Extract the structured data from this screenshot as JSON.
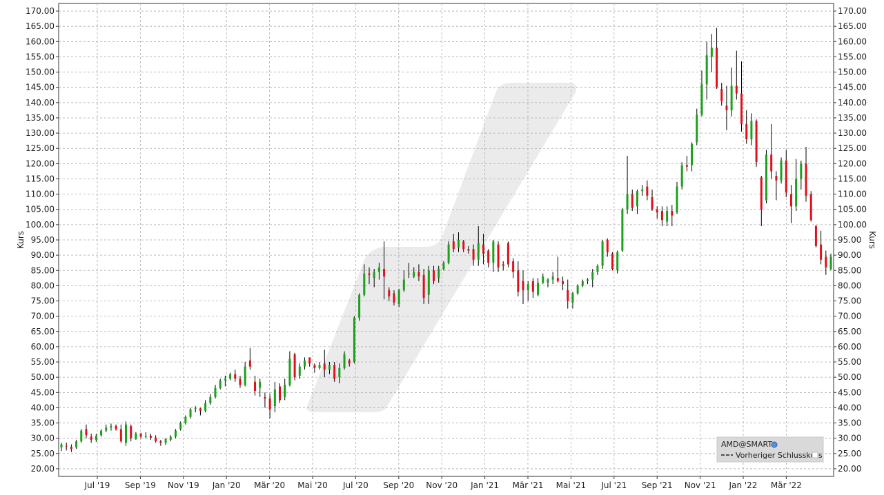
{
  "chart_data": {
    "type": "candlestick",
    "ylabel_left": "Kurs",
    "ylabel_right": "Kurs",
    "ylim": [
      17.5,
      172.5
    ],
    "grid": true,
    "y_ticks": [
      "20.00",
      "25.00",
      "30.00",
      "35.00",
      "40.00",
      "45.00",
      "50.00",
      "55.00",
      "60.00",
      "65.00",
      "70.00",
      "75.00",
      "80.00",
      "85.00",
      "90.00",
      "95.00",
      "100.00",
      "105.00",
      "110.00",
      "115.00",
      "120.00",
      "125.00",
      "130.00",
      "135.00",
      "140.00",
      "145.00",
      "150.00",
      "155.00",
      "160.00",
      "165.00",
      "170.00"
    ],
    "x_ticks": [
      "Jul '19",
      "Sep '19",
      "Nov '19",
      "Jan '20",
      "Mär '20",
      "Mai '20",
      "Jul '20",
      "Sep '20",
      "Nov '20",
      "Jan '21",
      "Mär '21",
      "Mai '21",
      "Jul '21",
      "Sep '21",
      "Nov '21",
      "Jan '22",
      "Mär '22"
    ],
    "colors": {
      "up": "#1aa01a",
      "down": "#e0101a",
      "wick": "#000000",
      "grid": "#aaaaaa"
    },
    "legend": {
      "placement": "bottom-right",
      "symbol": "AMD@SMART",
      "entry": "Vorheriger Schlusskurs"
    },
    "series": [
      {
        "o": 27.0,
        "h": 28.5,
        "l": 25.8,
        "c": 28.0
      },
      {
        "o": 27.5,
        "h": 28.6,
        "l": 26.0,
        "c": 27.3
      },
      {
        "o": 27.2,
        "h": 28.0,
        "l": 25.5,
        "c": 26.5
      },
      {
        "o": 27.0,
        "h": 29.5,
        "l": 26.5,
        "c": 29.0
      },
      {
        "o": 29.0,
        "h": 33.0,
        "l": 28.5,
        "c": 32.5
      },
      {
        "o": 33.0,
        "h": 34.5,
        "l": 30.0,
        "c": 31.0
      },
      {
        "o": 30.5,
        "h": 31.5,
        "l": 28.5,
        "c": 29.5
      },
      {
        "o": 29.5,
        "h": 31.5,
        "l": 28.8,
        "c": 30.8
      },
      {
        "o": 31.0,
        "h": 33.0,
        "l": 30.5,
        "c": 32.5
      },
      {
        "o": 32.5,
        "h": 34.5,
        "l": 32.0,
        "c": 33.5
      },
      {
        "o": 33.5,
        "h": 34.8,
        "l": 32.5,
        "c": 34.0
      },
      {
        "o": 34.0,
        "h": 34.5,
        "l": 32.5,
        "c": 33.0
      },
      {
        "o": 33.0,
        "h": 34.5,
        "l": 28.5,
        "c": 29.0
      },
      {
        "o": 28.5,
        "h": 35.5,
        "l": 27.5,
        "c": 34.5
      },
      {
        "o": 34.0,
        "h": 34.5,
        "l": 29.0,
        "c": 30.0
      },
      {
        "o": 29.8,
        "h": 32.0,
        "l": 29.5,
        "c": 31.5
      },
      {
        "o": 31.5,
        "h": 31.8,
        "l": 30.0,
        "c": 30.5
      },
      {
        "o": 30.5,
        "h": 32.0,
        "l": 30.0,
        "c": 30.8
      },
      {
        "o": 30.8,
        "h": 31.5,
        "l": 29.5,
        "c": 30.2
      },
      {
        "o": 30.2,
        "h": 31.0,
        "l": 28.5,
        "c": 29.0
      },
      {
        "o": 29.0,
        "h": 29.5,
        "l": 27.5,
        "c": 28.5
      },
      {
        "o": 28.5,
        "h": 30.0,
        "l": 27.8,
        "c": 29.8
      },
      {
        "o": 29.5,
        "h": 31.0,
        "l": 29.0,
        "c": 30.5
      },
      {
        "o": 30.5,
        "h": 33.0,
        "l": 30.0,
        "c": 32.5
      },
      {
        "o": 33.0,
        "h": 35.5,
        "l": 32.5,
        "c": 35.0
      },
      {
        "o": 35.0,
        "h": 37.5,
        "l": 34.5,
        "c": 37.0
      },
      {
        "o": 37.0,
        "h": 40.0,
        "l": 36.5,
        "c": 39.5
      },
      {
        "o": 39.5,
        "h": 40.5,
        "l": 38.5,
        "c": 39.8
      },
      {
        "o": 39.8,
        "h": 40.0,
        "l": 37.5,
        "c": 39.0
      },
      {
        "o": 39.0,
        "h": 42.5,
        "l": 38.5,
        "c": 41.5
      },
      {
        "o": 41.5,
        "h": 44.5,
        "l": 41.0,
        "c": 43.5
      },
      {
        "o": 43.5,
        "h": 47.5,
        "l": 43.0,
        "c": 46.5
      },
      {
        "o": 46.5,
        "h": 49.5,
        "l": 46.0,
        "c": 49.0
      },
      {
        "o": 49.0,
        "h": 50.5,
        "l": 47.0,
        "c": 49.5
      },
      {
        "o": 49.5,
        "h": 51.5,
        "l": 49.0,
        "c": 51.0
      },
      {
        "o": 51.0,
        "h": 52.5,
        "l": 48.5,
        "c": 49.5
      },
      {
        "o": 49.5,
        "h": 50.5,
        "l": 46.5,
        "c": 47.5
      },
      {
        "o": 47.5,
        "h": 55.0,
        "l": 47.0,
        "c": 53.5
      },
      {
        "o": 55.5,
        "h": 59.5,
        "l": 52.5,
        "c": 53.5
      },
      {
        "o": 48.5,
        "h": 50.5,
        "l": 44.0,
        "c": 45.5
      },
      {
        "o": 46.5,
        "h": 49.5,
        "l": 43.5,
        "c": 48.5
      },
      {
        "o": 43.5,
        "h": 45.0,
        "l": 40.0,
        "c": 43.0
      },
      {
        "o": 43.0,
        "h": 44.5,
        "l": 36.5,
        "c": 39.5
      },
      {
        "o": 40.5,
        "h": 48.5,
        "l": 38.5,
        "c": 46.0
      },
      {
        "o": 47.0,
        "h": 48.0,
        "l": 41.5,
        "c": 42.5
      },
      {
        "o": 43.5,
        "h": 49.5,
        "l": 42.5,
        "c": 47.5
      },
      {
        "o": 47.5,
        "h": 58.5,
        "l": 47.0,
        "c": 56.0
      },
      {
        "o": 57.5,
        "h": 58.0,
        "l": 49.0,
        "c": 50.0
      },
      {
        "o": 50.5,
        "h": 54.5,
        "l": 49.5,
        "c": 53.5
      },
      {
        "o": 53.5,
        "h": 56.5,
        "l": 52.5,
        "c": 55.5
      },
      {
        "o": 56.5,
        "h": 56.5,
        "l": 53.5,
        "c": 54.5
      },
      {
        "o": 54.0,
        "h": 54.5,
        "l": 51.5,
        "c": 53.0
      },
      {
        "o": 53.0,
        "h": 55.0,
        "l": 52.5,
        "c": 54.0
      },
      {
        "o": 54.5,
        "h": 59.0,
        "l": 50.0,
        "c": 52.5
      },
      {
        "o": 52.5,
        "h": 55.0,
        "l": 51.0,
        "c": 54.0
      },
      {
        "o": 54.0,
        "h": 55.0,
        "l": 48.5,
        "c": 49.5
      },
      {
        "o": 50.0,
        "h": 54.5,
        "l": 48.0,
        "c": 53.0
      },
      {
        "o": 53.0,
        "h": 58.5,
        "l": 52.5,
        "c": 57.5
      },
      {
        "o": 55.5,
        "h": 56.0,
        "l": 53.5,
        "c": 54.5
      },
      {
        "o": 55.0,
        "h": 70.0,
        "l": 54.5,
        "c": 69.5
      },
      {
        "o": 69.5,
        "h": 77.5,
        "l": 68.5,
        "c": 77.0
      },
      {
        "o": 77.0,
        "h": 87.0,
        "l": 76.5,
        "c": 84.0
      },
      {
        "o": 84.0,
        "h": 86.0,
        "l": 80.5,
        "c": 83.5
      },
      {
        "o": 82.5,
        "h": 85.5,
        "l": 79.5,
        "c": 84.5
      },
      {
        "o": 84.5,
        "h": 87.5,
        "l": 82.0,
        "c": 86.0
      },
      {
        "o": 85.5,
        "h": 94.5,
        "l": 75.5,
        "c": 83.0
      },
      {
        "o": 78.5,
        "h": 79.5,
        "l": 75.0,
        "c": 76.5
      },
      {
        "o": 77.5,
        "h": 78.5,
        "l": 73.5,
        "c": 74.5
      },
      {
        "o": 74.0,
        "h": 79.0,
        "l": 73.0,
        "c": 78.5
      },
      {
        "o": 78.5,
        "h": 85.0,
        "l": 78.0,
        "c": 82.0
      },
      {
        "o": 84.0,
        "h": 87.5,
        "l": 82.5,
        "c": 84.0
      },
      {
        "o": 83.0,
        "h": 86.0,
        "l": 82.5,
        "c": 84.5
      },
      {
        "o": 84.5,
        "h": 87.0,
        "l": 81.5,
        "c": 83.0
      },
      {
        "o": 83.5,
        "h": 85.5,
        "l": 74.0,
        "c": 76.0
      },
      {
        "o": 77.0,
        "h": 86.5,
        "l": 74.0,
        "c": 85.0
      },
      {
        "o": 85.0,
        "h": 86.5,
        "l": 80.5,
        "c": 81.5
      },
      {
        "o": 82.5,
        "h": 86.5,
        "l": 81.0,
        "c": 85.5
      },
      {
        "o": 85.5,
        "h": 88.0,
        "l": 85.0,
        "c": 87.5
      },
      {
        "o": 87.5,
        "h": 94.5,
        "l": 87.0,
        "c": 93.5
      },
      {
        "o": 94.5,
        "h": 97.0,
        "l": 91.0,
        "c": 92.0
      },
      {
        "o": 92.5,
        "h": 97.5,
        "l": 91.0,
        "c": 95.0
      },
      {
        "o": 94.5,
        "h": 95.0,
        "l": 91.0,
        "c": 92.0
      },
      {
        "o": 92.0,
        "h": 93.0,
        "l": 90.5,
        "c": 91.5
      },
      {
        "o": 92.0,
        "h": 93.5,
        "l": 86.5,
        "c": 88.5
      },
      {
        "o": 88.5,
        "h": 99.5,
        "l": 86.5,
        "c": 94.0
      },
      {
        "o": 93.5,
        "h": 97.0,
        "l": 87.0,
        "c": 90.5
      },
      {
        "o": 91.5,
        "h": 92.0,
        "l": 86.0,
        "c": 87.5
      },
      {
        "o": 87.5,
        "h": 95.0,
        "l": 84.5,
        "c": 94.5
      },
      {
        "o": 93.5,
        "h": 94.5,
        "l": 84.5,
        "c": 86.0
      },
      {
        "o": 87.0,
        "h": 88.0,
        "l": 85.0,
        "c": 86.5
      },
      {
        "o": 94.0,
        "h": 94.5,
        "l": 86.0,
        "c": 87.0
      },
      {
        "o": 88.0,
        "h": 89.0,
        "l": 82.5,
        "c": 84.5
      },
      {
        "o": 85.0,
        "h": 88.0,
        "l": 76.5,
        "c": 78.0
      },
      {
        "o": 81.5,
        "h": 85.0,
        "l": 74.0,
        "c": 78.5
      },
      {
        "o": 78.5,
        "h": 81.5,
        "l": 75.0,
        "c": 80.5
      },
      {
        "o": 81.5,
        "h": 82.5,
        "l": 76.0,
        "c": 78.0
      },
      {
        "o": 77.0,
        "h": 82.5,
        "l": 76.5,
        "c": 81.0
      },
      {
        "o": 81.0,
        "h": 84.0,
        "l": 80.5,
        "c": 83.0
      },
      {
        "o": 81.0,
        "h": 82.5,
        "l": 79.5,
        "c": 82.0
      },
      {
        "o": 82.0,
        "h": 84.5,
        "l": 80.5,
        "c": 83.0
      },
      {
        "o": 82.5,
        "h": 89.5,
        "l": 81.0,
        "c": 81.5
      },
      {
        "o": 81.5,
        "h": 83.0,
        "l": 78.5,
        "c": 80.5
      },
      {
        "o": 78.5,
        "h": 82.0,
        "l": 72.5,
        "c": 75.0
      },
      {
        "o": 74.5,
        "h": 78.0,
        "l": 72.5,
        "c": 77.5
      },
      {
        "o": 77.5,
        "h": 80.5,
        "l": 77.0,
        "c": 80.0
      },
      {
        "o": 80.0,
        "h": 82.0,
        "l": 79.5,
        "c": 81.5
      },
      {
        "o": 81.5,
        "h": 82.5,
        "l": 80.5,
        "c": 82.0
      },
      {
        "o": 82.0,
        "h": 85.5,
        "l": 79.5,
        "c": 84.5
      },
      {
        "o": 84.5,
        "h": 87.0,
        "l": 83.5,
        "c": 86.5
      },
      {
        "o": 86.5,
        "h": 95.0,
        "l": 85.5,
        "c": 94.5
      },
      {
        "o": 95.0,
        "h": 95.5,
        "l": 89.5,
        "c": 91.0
      },
      {
        "o": 90.5,
        "h": 91.0,
        "l": 85.0,
        "c": 85.5
      },
      {
        "o": 85.0,
        "h": 91.5,
        "l": 84.0,
        "c": 91.0
      },
      {
        "o": 91.5,
        "h": 105.5,
        "l": 91.0,
        "c": 105.0
      },
      {
        "o": 105.0,
        "h": 122.5,
        "l": 103.5,
        "c": 110.0
      },
      {
        "o": 110.0,
        "h": 111.5,
        "l": 104.5,
        "c": 105.5
      },
      {
        "o": 106.0,
        "h": 111.5,
        "l": 103.5,
        "c": 111.0
      },
      {
        "o": 111.0,
        "h": 113.0,
        "l": 109.5,
        "c": 111.5
      },
      {
        "o": 112.5,
        "h": 114.5,
        "l": 108.0,
        "c": 109.5
      },
      {
        "o": 109.0,
        "h": 111.5,
        "l": 104.5,
        "c": 105.0
      },
      {
        "o": 105.0,
        "h": 106.0,
        "l": 102.0,
        "c": 104.0
      },
      {
        "o": 104.5,
        "h": 106.0,
        "l": 99.5,
        "c": 101.5
      },
      {
        "o": 101.0,
        "h": 106.0,
        "l": 99.5,
        "c": 104.5
      },
      {
        "o": 104.5,
        "h": 106.5,
        "l": 99.5,
        "c": 103.0
      },
      {
        "o": 104.0,
        "h": 114.0,
        "l": 103.5,
        "c": 112.5
      },
      {
        "o": 112.5,
        "h": 120.5,
        "l": 111.5,
        "c": 119.5
      },
      {
        "o": 119.5,
        "h": 122.5,
        "l": 117.5,
        "c": 119.0
      },
      {
        "o": 119.5,
        "h": 127.0,
        "l": 117.5,
        "c": 126.5
      },
      {
        "o": 127.0,
        "h": 138.0,
        "l": 126.0,
        "c": 136.0
      },
      {
        "o": 136.0,
        "h": 150.5,
        "l": 135.5,
        "c": 146.0
      },
      {
        "o": 146.0,
        "h": 160.0,
        "l": 141.0,
        "c": 155.5
      },
      {
        "o": 155.0,
        "h": 162.5,
        "l": 150.0,
        "c": 158.0
      },
      {
        "o": 158.0,
        "h": 164.5,
        "l": 144.5,
        "c": 145.0
      },
      {
        "o": 144.5,
        "h": 146.5,
        "l": 139.0,
        "c": 140.5
      },
      {
        "o": 139.0,
        "h": 145.5,
        "l": 131.0,
        "c": 137.5
      },
      {
        "o": 137.5,
        "h": 151.5,
        "l": 135.5,
        "c": 145.5
      },
      {
        "o": 145.5,
        "h": 157.0,
        "l": 141.0,
        "c": 143.0
      },
      {
        "o": 143.0,
        "h": 153.5,
        "l": 130.5,
        "c": 133.0
      },
      {
        "o": 133.0,
        "h": 137.5,
        "l": 126.5,
        "c": 128.0
      },
      {
        "o": 128.0,
        "h": 136.5,
        "l": 126.0,
        "c": 134.0
      },
      {
        "o": 134.0,
        "h": 134.5,
        "l": 119.0,
        "c": 120.5
      },
      {
        "o": 115.5,
        "h": 116.0,
        "l": 99.5,
        "c": 105.0
      },
      {
        "o": 108.0,
        "h": 124.5,
        "l": 107.0,
        "c": 123.0
      },
      {
        "o": 123.0,
        "h": 133.0,
        "l": 115.0,
        "c": 117.5
      },
      {
        "o": 116.0,
        "h": 117.5,
        "l": 108.0,
        "c": 114.5
      },
      {
        "o": 114.5,
        "h": 122.0,
        "l": 113.5,
        "c": 121.0
      },
      {
        "o": 121.0,
        "h": 124.5,
        "l": 109.0,
        "c": 110.5
      },
      {
        "o": 110.0,
        "h": 113.0,
        "l": 100.5,
        "c": 106.0
      },
      {
        "o": 106.0,
        "h": 121.5,
        "l": 104.5,
        "c": 115.0
      },
      {
        "o": 115.0,
        "h": 121.0,
        "l": 111.5,
        "c": 120.0
      },
      {
        "o": 120.0,
        "h": 125.5,
        "l": 107.5,
        "c": 109.5
      },
      {
        "o": 110.0,
        "h": 111.0,
        "l": 101.0,
        "c": 101.5
      },
      {
        "o": 99.5,
        "h": 100.0,
        "l": 92.5,
        "c": 93.0
      },
      {
        "o": 93.5,
        "h": 98.0,
        "l": 87.0,
        "c": 88.5
      },
      {
        "o": 89.5,
        "h": 91.5,
        "l": 83.5,
        "c": 86.0
      },
      {
        "o": 85.5,
        "h": 90.5,
        "l": 85.0,
        "c": 89.5
      }
    ]
  }
}
